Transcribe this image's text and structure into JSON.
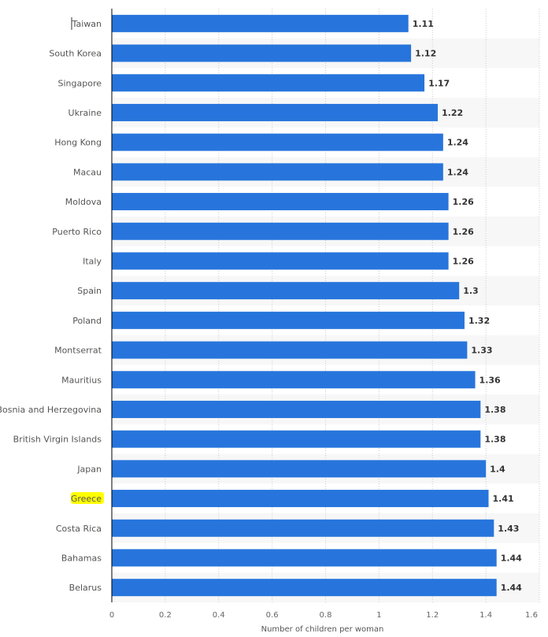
{
  "chart_data": {
    "type": "bar",
    "orientation": "horizontal",
    "categories": [
      "Taiwan",
      "South Korea",
      "Singapore",
      "Ukraine",
      "Hong Kong",
      "Macau",
      "Moldova",
      "Puerto Rico",
      "Italy",
      "Spain",
      "Poland",
      "Montserrat",
      "Mauritius",
      "Bosnia and Herzegovina",
      "British Virgin Islands",
      "Japan",
      "Greece",
      "Costa Rica",
      "Bahamas",
      "Belarus"
    ],
    "values": [
      1.11,
      1.12,
      1.17,
      1.22,
      1.24,
      1.24,
      1.26,
      1.26,
      1.26,
      1.3,
      1.32,
      1.33,
      1.36,
      1.38,
      1.38,
      1.4,
      1.41,
      1.43,
      1.44,
      1.44
    ],
    "value_labels": [
      "1.11",
      "1.12",
      "1.17",
      "1.22",
      "1.24",
      "1.24",
      "1.26",
      "1.26",
      "1.26",
      "1.3",
      "1.32",
      "1.33",
      "1.36",
      "1.38",
      "1.38",
      "1.4",
      "1.41",
      "1.43",
      "1.44",
      "1.44"
    ],
    "xlabel": "Number of children per woman",
    "ylabel": "",
    "xlim": [
      0,
      1.6
    ],
    "ticks": [
      "0",
      "0.2",
      "0.4",
      "0.6",
      "0.8",
      "1",
      "1.2",
      "1.4",
      "1.6"
    ],
    "grid": true,
    "highlighted_category": "Greece",
    "colors": {
      "bar": "#2775dc",
      "band": "#f7f7f7",
      "highlight": "#ffff00"
    }
  }
}
